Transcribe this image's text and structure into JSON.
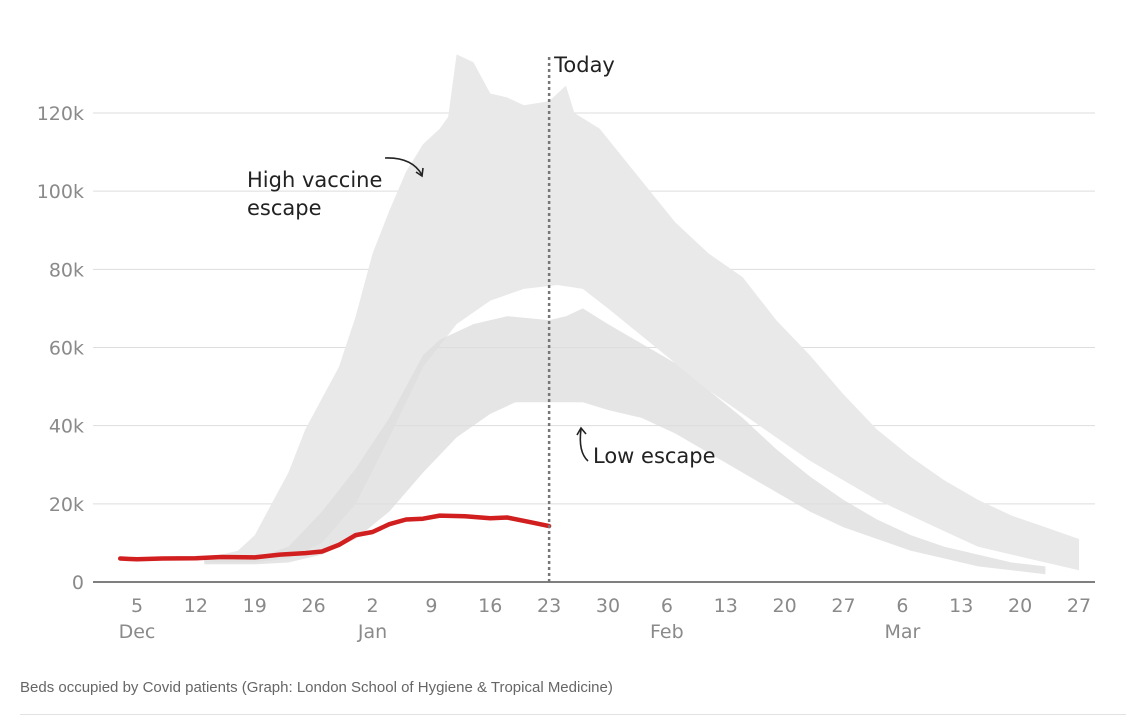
{
  "caption": "Beds occupied by Covid patients (Graph: London School of Hygiene & Tropical Medicine)",
  "colors": {
    "actual": "#d11f1f",
    "band": "#e9e9e9",
    "band_overlap": "#dcdcdc",
    "grid": "#dddddd",
    "today_line": "#777777"
  },
  "chart_data": {
    "type": "area",
    "title": "",
    "xlabel": "",
    "ylabel": "",
    "x_unit": "days from Dec 1",
    "ylim": [
      0,
      130000
    ],
    "yticks": [
      0,
      20000,
      40000,
      60000,
      80000,
      100000,
      120000
    ],
    "ytick_labels": [
      "0",
      "20k",
      "40k",
      "60k",
      "80k",
      "100k",
      "120k"
    ],
    "xticks": [
      {
        "day": 4,
        "label": "5",
        "month": "Dec"
      },
      {
        "day": 11,
        "label": "12",
        "month": ""
      },
      {
        "day": 18,
        "label": "19",
        "month": ""
      },
      {
        "day": 25,
        "label": "26",
        "month": ""
      },
      {
        "day": 32,
        "label": "2",
        "month": "Jan"
      },
      {
        "day": 39,
        "label": "9",
        "month": ""
      },
      {
        "day": 46,
        "label": "16",
        "month": ""
      },
      {
        "day": 53,
        "label": "23",
        "month": ""
      },
      {
        "day": 60,
        "label": "30",
        "month": ""
      },
      {
        "day": 67,
        "label": "6",
        "month": "Feb"
      },
      {
        "day": 74,
        "label": "13",
        "month": ""
      },
      {
        "day": 81,
        "label": "20",
        "month": ""
      },
      {
        "day": 88,
        "label": "27",
        "month": ""
      },
      {
        "day": 95,
        "label": "6",
        "month": "Mar"
      },
      {
        "day": 102,
        "label": "13",
        "month": ""
      },
      {
        "day": 109,
        "label": "20",
        "month": ""
      },
      {
        "day": 116,
        "label": "27",
        "month": ""
      }
    ],
    "grid": true,
    "today": {
      "day": 53,
      "label": "Today"
    },
    "annotations": [
      {
        "text_lines": [
          "High vaccine",
          "escape"
        ],
        "target": "high_escape"
      },
      {
        "text_lines": [
          "Low escape"
        ],
        "target": "low_escape"
      }
    ],
    "series": [
      {
        "id": "actual",
        "values": [
          [
            2,
            6000
          ],
          [
            4,
            5800
          ],
          [
            7,
            6000
          ],
          [
            11,
            6100
          ],
          [
            14,
            6400
          ],
          [
            18,
            6300
          ],
          [
            21,
            7000
          ],
          [
            24,
            7400
          ],
          [
            26,
            7800
          ],
          [
            28,
            9500
          ],
          [
            30,
            12000
          ],
          [
            32,
            12800
          ],
          [
            34,
            14800
          ],
          [
            36,
            16000
          ],
          [
            38,
            16200
          ],
          [
            40,
            17000
          ],
          [
            43,
            16800
          ],
          [
            46,
            16300
          ],
          [
            48,
            16500
          ],
          [
            51,
            15200
          ],
          [
            53,
            14300
          ]
        ]
      },
      {
        "id": "high_escape",
        "upper": [
          [
            12,
            6000
          ],
          [
            16,
            8000
          ],
          [
            18,
            12000
          ],
          [
            20,
            20000
          ],
          [
            22,
            28000
          ],
          [
            24,
            39000
          ],
          [
            26,
            47000
          ],
          [
            28,
            55000
          ],
          [
            30,
            68000
          ],
          [
            32,
            84000
          ],
          [
            34,
            95000
          ],
          [
            36,
            105000
          ],
          [
            38,
            112000
          ],
          [
            40,
            116000
          ],
          [
            41,
            119000
          ],
          [
            42,
            135000
          ],
          [
            44,
            133000
          ],
          [
            46,
            125000
          ],
          [
            48,
            124000
          ],
          [
            50,
            122000
          ],
          [
            53,
            123000
          ],
          [
            55,
            127000
          ],
          [
            56,
            120000
          ],
          [
            59,
            116000
          ],
          [
            62,
            108000
          ],
          [
            65,
            100000
          ],
          [
            68,
            92000
          ],
          [
            72,
            84000
          ],
          [
            76,
            78000
          ],
          [
            80,
            67000
          ],
          [
            84,
            58000
          ],
          [
            88,
            48000
          ],
          [
            92,
            39000
          ],
          [
            96,
            32000
          ],
          [
            100,
            26000
          ],
          [
            104,
            21000
          ],
          [
            108,
            17000
          ],
          [
            112,
            14000
          ],
          [
            116,
            11000
          ]
        ],
        "lower": [
          [
            116,
            3000
          ],
          [
            112,
            5000
          ],
          [
            108,
            7000
          ],
          [
            104,
            9000
          ],
          [
            100,
            13000
          ],
          [
            96,
            17000
          ],
          [
            92,
            21000
          ],
          [
            88,
            26000
          ],
          [
            84,
            31000
          ],
          [
            80,
            37000
          ],
          [
            76,
            43000
          ],
          [
            72,
            49000
          ],
          [
            68,
            56000
          ],
          [
            64,
            63000
          ],
          [
            60,
            70000
          ],
          [
            57,
            75000
          ],
          [
            54,
            76000
          ],
          [
            50,
            75000
          ],
          [
            46,
            72000
          ],
          [
            42,
            66000
          ],
          [
            38,
            55000
          ],
          [
            34,
            37000
          ],
          [
            30,
            20000
          ],
          [
            26,
            10000
          ],
          [
            22,
            6000
          ],
          [
            18,
            5000
          ],
          [
            12,
            5000
          ]
        ]
      },
      {
        "id": "low_escape",
        "upper": [
          [
            12,
            5500
          ],
          [
            18,
            6000
          ],
          [
            22,
            9000
          ],
          [
            26,
            18000
          ],
          [
            30,
            29000
          ],
          [
            34,
            42000
          ],
          [
            36,
            50000
          ],
          [
            38,
            58000
          ],
          [
            40,
            62000
          ],
          [
            44,
            66000
          ],
          [
            48,
            68000
          ],
          [
            53,
            67000
          ],
          [
            55,
            68000
          ],
          [
            57,
            70000
          ],
          [
            60,
            66000
          ],
          [
            64,
            61000
          ],
          [
            68,
            56000
          ],
          [
            72,
            49000
          ],
          [
            76,
            42000
          ],
          [
            80,
            34000
          ],
          [
            84,
            27000
          ],
          [
            88,
            21000
          ],
          [
            92,
            16000
          ],
          [
            96,
            12000
          ],
          [
            100,
            9000
          ],
          [
            104,
            7000
          ],
          [
            108,
            5000
          ],
          [
            112,
            4000
          ]
        ],
        "lower": [
          [
            112,
            2000
          ],
          [
            108,
            3000
          ],
          [
            104,
            4000
          ],
          [
            100,
            6000
          ],
          [
            96,
            8000
          ],
          [
            92,
            11000
          ],
          [
            88,
            14000
          ],
          [
            84,
            18000
          ],
          [
            80,
            23000
          ],
          [
            76,
            28000
          ],
          [
            72,
            33000
          ],
          [
            68,
            38000
          ],
          [
            64,
            42000
          ],
          [
            60,
            44000
          ],
          [
            57,
            46000
          ],
          [
            53,
            46000
          ],
          [
            49,
            46000
          ],
          [
            46,
            43000
          ],
          [
            42,
            37000
          ],
          [
            38,
            28000
          ],
          [
            34,
            18000
          ],
          [
            30,
            11000
          ],
          [
            26,
            7000
          ],
          [
            22,
            5000
          ],
          [
            18,
            4500
          ],
          [
            12,
            4500
          ]
        ]
      }
    ]
  }
}
